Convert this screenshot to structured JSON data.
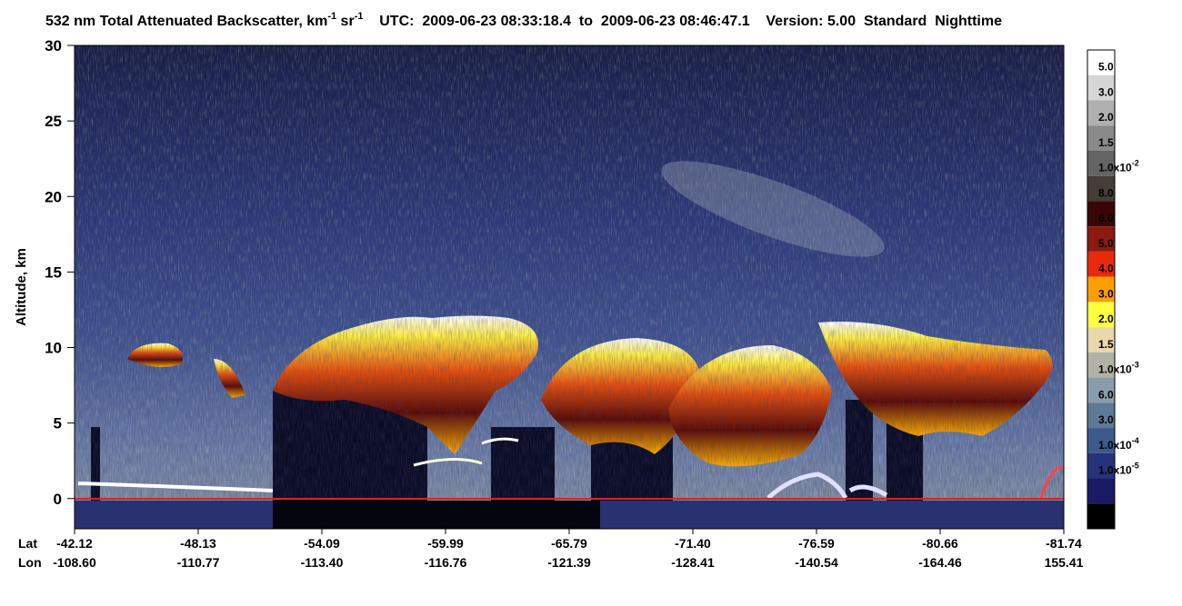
{
  "chart_data": {
    "type": "heatmap",
    "title": [
      "532 nm Total Attenuated Backscatter, km",
      "-1",
      " sr",
      "-1",
      "    UTC:  2009-06-23 08:33:18.4  to  2009-06-23 08:46:47.1    Version: 5.00  Standard  Nighttime"
    ],
    "ylabel": "Altitude, km",
    "ylim": [
      -2,
      30
    ],
    "yticks": [
      0,
      5,
      10,
      15,
      20,
      25,
      30
    ],
    "x_rows": [
      {
        "name": "Lat",
        "labels": [
          "-42.12",
          "-48.13",
          "-54.09",
          "-59.99",
          "-65.79",
          "-71.40",
          "-76.59",
          "-80.66",
          "-81.74"
        ]
      },
      {
        "name": "Lon",
        "labels": [
          "-108.60",
          "-110.77",
          "-113.40",
          "-116.76",
          "-121.39",
          "-128.41",
          "-140.54",
          "-164.46",
          "155.41"
        ]
      }
    ],
    "colorbar": {
      "colors": [
        "#ffffff",
        "#d6d6d6",
        "#b0b0b0",
        "#8a8a8a",
        "#646464",
        "#463c38",
        "#3a0505",
        "#8c1a10",
        "#e82a0c",
        "#ff9e00",
        "#ffff40",
        "#e8d8ac",
        "#b2b2a4",
        "#8a9cac",
        "#5e7896",
        "#3c5a8c",
        "#26337a",
        "#1a1a66",
        "#000000"
      ],
      "labels": [
        {
          "text": "5.0"
        },
        {
          "text": "3.0"
        },
        {
          "text": "2.0"
        },
        {
          "text": "1.5"
        },
        {
          "text": "1.0x10",
          "sup": "-2"
        },
        {
          "text": "8.0"
        },
        {
          "text": "6.0"
        },
        {
          "text": "5.0"
        },
        {
          "text": "4.0"
        },
        {
          "text": "3.0"
        },
        {
          "text": "2.0"
        },
        {
          "text": "1.5"
        },
        {
          "text": "1.0x10",
          "sup": "-3"
        },
        {
          "text": "6.0"
        },
        {
          "text": "3.0"
        },
        {
          "text": "1.0x10",
          "sup": "-4"
        },
        {
          "text": "1.0x10",
          "sup": "-5"
        }
      ]
    }
  }
}
